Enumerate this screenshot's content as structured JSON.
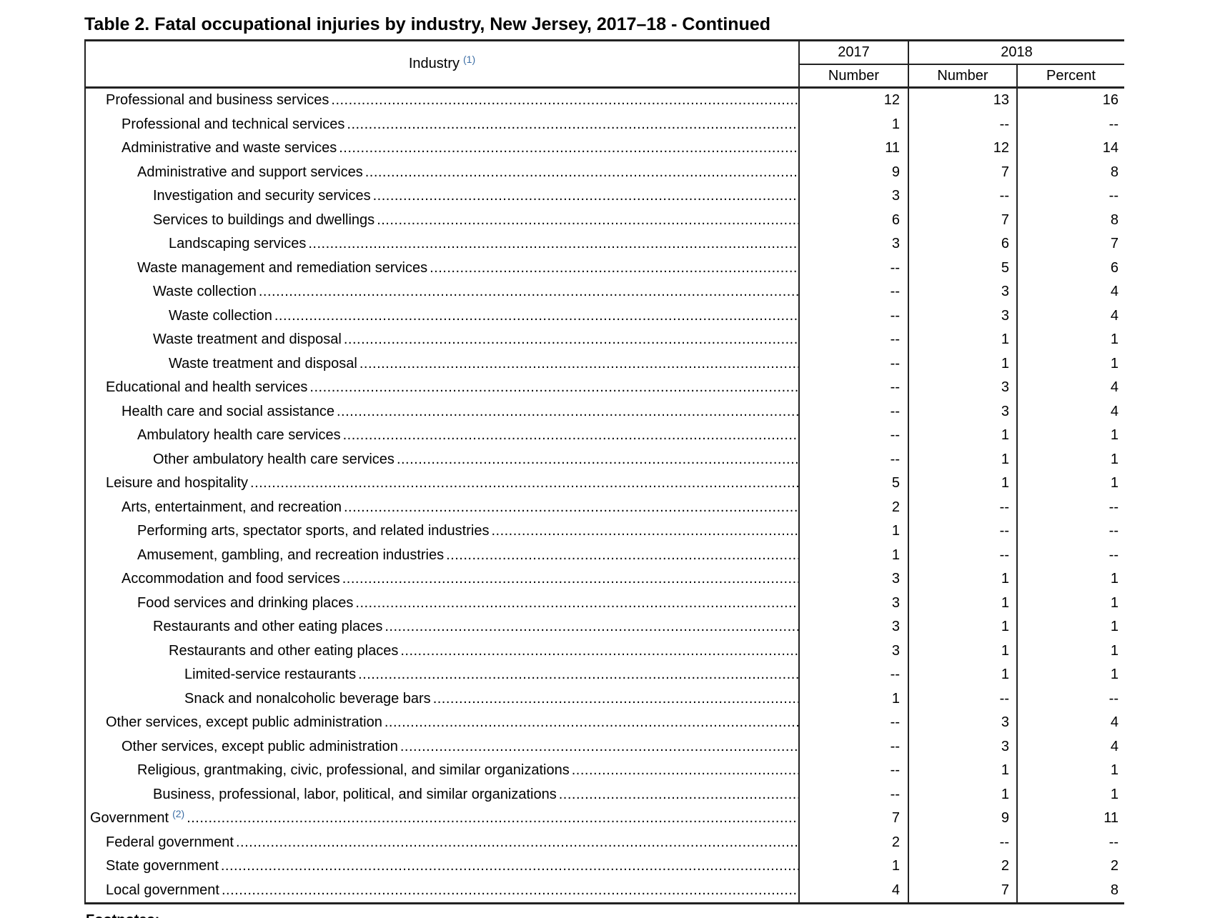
{
  "title": "Table 2. Fatal occupational injuries by industry, New Jersey, 2017–18 - Continued",
  "table": {
    "header": {
      "industry_label": "Industry",
      "industry_footnote_ref": "(1)",
      "year_2017": "2017",
      "year_2018": "2018",
      "number_2017": "Number",
      "number_2018": "Number",
      "percent_2018": "Percent"
    },
    "missing_value_symbol": "--",
    "rows": [
      {
        "label": "Professional and business services",
        "indent": 1,
        "values": [
          "12",
          "13",
          "16"
        ]
      },
      {
        "label": "Professional and technical services",
        "indent": 2,
        "values": [
          "1",
          "--",
          "--"
        ]
      },
      {
        "label": "Administrative and waste services",
        "indent": 2,
        "values": [
          "11",
          "12",
          "14"
        ]
      },
      {
        "label": "Administrative and support services",
        "indent": 3,
        "values": [
          "9",
          "7",
          "8"
        ]
      },
      {
        "label": "Investigation and security services",
        "indent": 4,
        "values": [
          "3",
          "--",
          "--"
        ]
      },
      {
        "label": "Services to buildings and dwellings",
        "indent": 4,
        "values": [
          "6",
          "7",
          "8"
        ]
      },
      {
        "label": "Landscaping services",
        "indent": 5,
        "values": [
          "3",
          "6",
          "7"
        ]
      },
      {
        "label": "Waste management and remediation services",
        "indent": 3,
        "values": [
          "--",
          "5",
          "6"
        ]
      },
      {
        "label": "Waste collection",
        "indent": 4,
        "values": [
          "--",
          "3",
          "4"
        ]
      },
      {
        "label": "Waste collection",
        "indent": 5,
        "values": [
          "--",
          "3",
          "4"
        ]
      },
      {
        "label": "Waste treatment and disposal",
        "indent": 4,
        "values": [
          "--",
          "1",
          "1"
        ]
      },
      {
        "label": "Waste treatment and disposal",
        "indent": 5,
        "values": [
          "--",
          "1",
          "1"
        ]
      },
      {
        "label": "Educational and health services",
        "indent": 1,
        "values": [
          "--",
          "3",
          "4"
        ]
      },
      {
        "label": "Health care and social assistance",
        "indent": 2,
        "values": [
          "--",
          "3",
          "4"
        ]
      },
      {
        "label": "Ambulatory health care services",
        "indent": 3,
        "values": [
          "--",
          "1",
          "1"
        ]
      },
      {
        "label": "Other ambulatory health care services",
        "indent": 4,
        "values": [
          "--",
          "1",
          "1"
        ]
      },
      {
        "label": "Leisure and hospitality",
        "indent": 1,
        "values": [
          "5",
          "1",
          "1"
        ]
      },
      {
        "label": "Arts, entertainment, and recreation",
        "indent": 2,
        "values": [
          "2",
          "--",
          "--"
        ]
      },
      {
        "label": "Performing arts, spectator sports, and related industries",
        "indent": 3,
        "values": [
          "1",
          "--",
          "--"
        ]
      },
      {
        "label": "Amusement, gambling, and recreation industries",
        "indent": 3,
        "values": [
          "1",
          "--",
          "--"
        ]
      },
      {
        "label": "Accommodation and food services",
        "indent": 2,
        "values": [
          "3",
          "1",
          "1"
        ]
      },
      {
        "label": "Food services and drinking places",
        "indent": 3,
        "values": [
          "3",
          "1",
          "1"
        ]
      },
      {
        "label": "Restaurants and other eating places",
        "indent": 4,
        "values": [
          "3",
          "1",
          "1"
        ]
      },
      {
        "label": "Restaurants and other eating places",
        "indent": 5,
        "values": [
          "3",
          "1",
          "1"
        ]
      },
      {
        "label": "Limited-service restaurants",
        "indent": 6,
        "values": [
          "--",
          "1",
          "1"
        ]
      },
      {
        "label": "Snack and nonalcoholic beverage bars",
        "indent": 6,
        "values": [
          "1",
          "--",
          "--"
        ]
      },
      {
        "label": "Other services, except public administration",
        "indent": 1,
        "values": [
          "--",
          "3",
          "4"
        ]
      },
      {
        "label": "Other services, except public administration",
        "indent": 2,
        "values": [
          "--",
          "3",
          "4"
        ]
      },
      {
        "label": "Religious, grantmaking, civic, professional, and similar organizations",
        "indent": 3,
        "values": [
          "--",
          "1",
          "1"
        ]
      },
      {
        "label": "Business, professional, labor, political, and similar organizations",
        "indent": 4,
        "values": [
          "--",
          "1",
          "1"
        ]
      },
      {
        "label": "Government",
        "footnote_ref": "(2)",
        "indent": 0,
        "values": [
          "7",
          "9",
          "11"
        ]
      },
      {
        "label": "Federal government",
        "indent": 1,
        "values": [
          "2",
          "--",
          "--"
        ]
      },
      {
        "label": "State government",
        "indent": 1,
        "values": [
          "1",
          "2",
          "2"
        ]
      },
      {
        "label": "Local government",
        "indent": 1,
        "values": [
          "4",
          "7",
          "8"
        ]
      }
    ]
  },
  "colors": {
    "rule": "#222222",
    "text": "#000000",
    "footnote_link": "#3c6ea5"
  },
  "footer_fragment": "Footnotes:"
}
